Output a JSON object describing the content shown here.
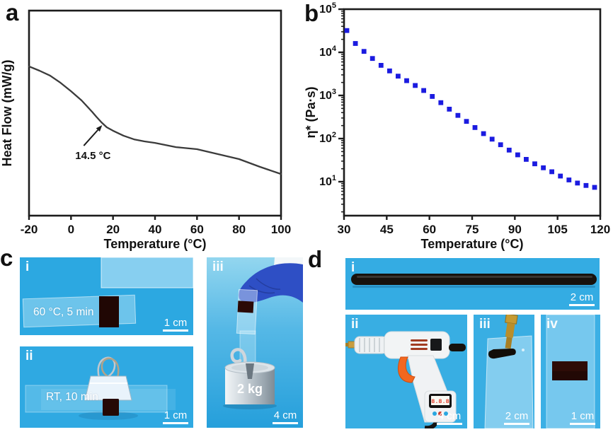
{
  "palette": {
    "photo_background_blue": "#2fa9e2",
    "marker_blue": "#1b1be0",
    "adhesive_dark_brown": "#240805",
    "glove_blue": "#2e4fc5",
    "trigger_orange": "#f2671f",
    "brass_gold": "#c59a32",
    "axis_black": "#1c1c1c"
  },
  "panels": {
    "a": {
      "letter": "a"
    },
    "b": {
      "letter": "b"
    },
    "c": {
      "letter": "c",
      "i": {
        "tag": "i",
        "caption": "60 °C, 5 min",
        "scale": "1 cm"
      },
      "ii": {
        "tag": "ii",
        "caption": "RT, 10 min",
        "scale": "1 cm"
      },
      "iii": {
        "tag": "iii",
        "weight": "2 kg",
        "scale": "4 cm"
      }
    },
    "d": {
      "letter": "d",
      "i": {
        "tag": "i",
        "scale": "2 cm"
      },
      "ii": {
        "tag": "ii",
        "scale": "4 cm",
        "display": "8.8.8"
      },
      "iii": {
        "tag": "iii",
        "scale": "2 cm"
      },
      "iv": {
        "tag": "iv",
        "scale": "1 cm"
      }
    }
  },
  "chart_data": [
    {
      "id": "a",
      "type": "line",
      "title": "",
      "xlabel": "Temperature (°C)",
      "ylabel": "Heat Flow (mW/g)",
      "xlim": [
        -20,
        100
      ],
      "x_ticks": [
        -20,
        0,
        20,
        40,
        60,
        80,
        100
      ],
      "y_axis_note": "no numeric ticks; heat flow in arbitrary units, monotonically decreasing",
      "annotation": {
        "text": "14.5 °C",
        "x": 14.5,
        "y_frac": 0.455
      },
      "points_T": [
        -20,
        -15,
        -10,
        -5,
        0,
        5,
        10,
        12,
        14.5,
        17,
        20,
        25,
        30,
        35,
        40,
        50,
        60,
        70,
        80,
        90,
        100
      ],
      "points_au": [
        0.728,
        0.707,
        0.683,
        0.648,
        0.607,
        0.562,
        0.507,
        0.483,
        0.455,
        0.431,
        0.414,
        0.39,
        0.372,
        0.362,
        0.355,
        0.334,
        0.324,
        0.3,
        0.276,
        0.238,
        0.203
      ]
    },
    {
      "id": "b",
      "type": "scatter",
      "marker": "square",
      "marker_color": "#1b1be0",
      "xlabel": "Temperature (°C)",
      "ylabel": "η* (Pa·s)",
      "xlim": [
        30,
        120
      ],
      "x_ticks": [
        30,
        45,
        60,
        75,
        90,
        105,
        120
      ],
      "y_scale": "log",
      "ylim": [
        1.6,
        100000
      ],
      "y_tick_exponents": [
        1,
        2,
        3,
        4,
        5
      ],
      "T": [
        31,
        34,
        37,
        40,
        43,
        46,
        49,
        52,
        55,
        58,
        61,
        64,
        67,
        70,
        73,
        76,
        79,
        82,
        85,
        88,
        91,
        94,
        97,
        100,
        103,
        106,
        109,
        112,
        115,
        118
      ],
      "eta": [
        32000,
        16000,
        10500,
        7200,
        5000,
        3700,
        2800,
        2200,
        1700,
        1300,
        950,
        680,
        480,
        345,
        250,
        180,
        130,
        97,
        72,
        54,
        42,
        33,
        26,
        21,
        17,
        13.5,
        11,
        9.3,
        8.2,
        7.4
      ]
    }
  ]
}
